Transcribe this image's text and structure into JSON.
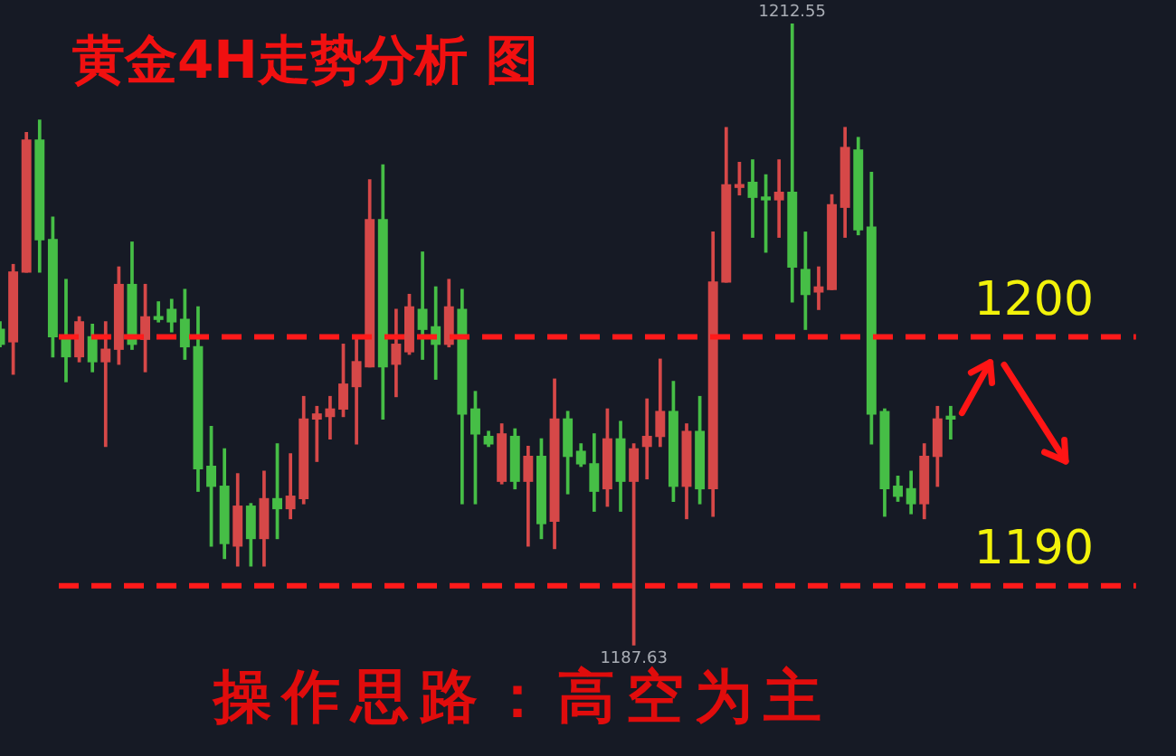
{
  "chart_data": {
    "type": "candlestick",
    "title": "黄金4H走势分析 图",
    "categories": [
      null,
      null,
      null,
      null,
      null,
      null,
      null,
      null,
      null,
      null,
      null,
      null,
      null,
      null,
      null,
      null,
      null,
      null,
      null,
      null,
      null,
      null,
      null,
      null,
      null,
      null,
      null,
      null,
      null,
      null,
      null,
      null,
      null,
      null,
      null,
      null,
      null,
      null,
      null,
      null,
      null,
      null,
      null,
      null,
      null,
      null,
      null,
      null,
      null,
      null,
      null,
      null,
      null,
      null,
      null,
      null,
      null,
      null,
      null,
      null,
      null,
      null,
      null,
      null,
      null,
      null,
      null,
      null,
      null,
      null,
      null,
      null,
      null
    ],
    "ohlc": [
      [
        1200.3,
        1200.6,
        1199.6,
        1199.7
      ],
      [
        1199.8,
        1202.9,
        1198.5,
        1202.6
      ],
      [
        1202.6,
        1208.2,
        1202.6,
        1207.9
      ],
      [
        1207.9,
        1208.7,
        1202.6,
        1203.9
      ],
      [
        1203.9,
        1204.8,
        1199.2,
        1200.0
      ],
      [
        1200.0,
        1202.3,
        1198.2,
        1199.2
      ],
      [
        1199.2,
        1200.8,
        1199.0,
        1200.6
      ],
      [
        1200.0,
        1200.5,
        1198.6,
        1199.0
      ],
      [
        1199.0,
        1200.6,
        1195.6,
        1199.5
      ],
      [
        1199.5,
        1202.8,
        1198.9,
        1202.1
      ],
      [
        1202.1,
        1203.8,
        1199.5,
        1199.7
      ],
      [
        1199.9,
        1202.1,
        1198.6,
        1200.8
      ],
      [
        1200.8,
        1201.4,
        1200.6,
        1200.7
      ],
      [
        1201.1,
        1201.5,
        1200.2,
        1200.6
      ],
      [
        1200.7,
        1201.9,
        1199.1,
        1199.6
      ],
      [
        1199.6,
        1201.2,
        1193.8,
        1194.7
      ],
      [
        1194.8,
        1196.4,
        1191.6,
        1194.0
      ],
      [
        1194.0,
        1195.5,
        1191.1,
        1191.7
      ],
      [
        1191.6,
        1194.5,
        1190.8,
        1193.2
      ],
      [
        1193.2,
        1193.3,
        1190.8,
        1191.9
      ],
      [
        1191.9,
        1194.6,
        1190.8,
        1193.5
      ],
      [
        1193.5,
        1195.7,
        1191.9,
        1193.1
      ],
      [
        1193.1,
        1195.3,
        1192.7,
        1193.6
      ],
      [
        1193.5,
        1197.6,
        1193.3,
        1196.7
      ],
      [
        1196.7,
        1197.2,
        1195.0,
        1196.9
      ],
      [
        1196.8,
        1197.6,
        1195.9,
        1197.1
      ],
      [
        1197.1,
        1199.7,
        1196.8,
        1198.1
      ],
      [
        1198.0,
        1200.0,
        1195.7,
        1199.0
      ],
      [
        1198.8,
        1206.3,
        1198.8,
        1204.7
      ],
      [
        1204.7,
        1206.9,
        1196.7,
        1198.8
      ],
      [
        1198.9,
        1201.1,
        1197.6,
        1199.7
      ],
      [
        1199.4,
        1201.7,
        1199.3,
        1201.2
      ],
      [
        1201.1,
        1203.4,
        1199.1,
        1200.3
      ],
      [
        1200.4,
        1202.0,
        1198.3,
        1199.7
      ],
      [
        1199.7,
        1202.3,
        1199.6,
        1201.2
      ],
      [
        1201.1,
        1201.9,
        1193.3,
        1196.9
      ],
      [
        1197.1,
        1197.8,
        1193.3,
        1196.1
      ],
      [
        1196.0,
        1196.2,
        1195.6,
        1195.7
      ],
      [
        1194.2,
        1196.5,
        1194.1,
        1196.1
      ],
      [
        1196.0,
        1196.3,
        1193.9,
        1194.2
      ],
      [
        1194.2,
        1195.6,
        1191.6,
        1195.2
      ],
      [
        1195.2,
        1195.9,
        1191.9,
        1192.5
      ],
      [
        1192.6,
        1198.3,
        1191.5,
        1196.7
      ],
      [
        1196.7,
        1197.0,
        1193.7,
        1195.2
      ],
      [
        1195.4,
        1195.7,
        1194.8,
        1194.9
      ],
      [
        1194.9,
        1196.1,
        1193.0,
        1193.8
      ],
      [
        1193.9,
        1197.1,
        1193.2,
        1195.9
      ],
      [
        1195.9,
        1196.6,
        1193.0,
        1194.2
      ],
      [
        1194.2,
        1195.7,
        1187.63,
        1195.5
      ],
      [
        1195.6,
        1197.5,
        1194.3,
        1196.0
      ],
      [
        1196.0,
        1199.1,
        1195.6,
        1197.0
      ],
      [
        1197.0,
        1198.2,
        1193.4,
        1194.0
      ],
      [
        1194.0,
        1196.5,
        1192.7,
        1196.2
      ],
      [
        1196.2,
        1197.6,
        1193.3,
        1193.9
      ],
      [
        1193.9,
        1204.2,
        1192.8,
        1202.2
      ],
      [
        1202.2,
        1208.4,
        1202.2,
        1206.1
      ],
      [
        1206.0,
        1207.0,
        1205.7,
        1206.1
      ],
      [
        1206.2,
        1207.1,
        1204.0,
        1205.6
      ],
      [
        1205.6,
        1206.5,
        1203.4,
        1205.5
      ],
      [
        1205.5,
        1207.1,
        1204.0,
        1205.8
      ],
      [
        1205.8,
        1212.55,
        1201.4,
        1202.8
      ],
      [
        1202.7,
        1204.2,
        1200.3,
        1201.7
      ],
      [
        1201.8,
        1202.8,
        1201.1,
        1202.0
      ],
      [
        1201.9,
        1205.7,
        1201.9,
        1205.3
      ],
      [
        1205.2,
        1208.4,
        1204.0,
        1207.6
      ],
      [
        1207.5,
        1208.0,
        1204.1,
        1204.3
      ],
      [
        1204.4,
        1206.6,
        1195.7,
        1196.9
      ],
      [
        1197.0,
        1197.1,
        1192.8,
        1193.9
      ],
      [
        1194.0,
        1194.4,
        1193.4,
        1193.6
      ],
      [
        1193.9,
        1194.6,
        1192.9,
        1193.3
      ],
      [
        1193.3,
        1195.7,
        1192.7,
        1195.2
      ],
      [
        1195.2,
        1197.2,
        1194.0,
        1196.7
      ],
      [
        1196.8,
        1197.2,
        1195.9,
        1196.7
      ]
    ],
    "colors": [
      "#46be46",
      "#d64848",
      "#d64848",
      "#46be46",
      "#46be46",
      "#46be46",
      "#d64848",
      "#46be46",
      "#d64848",
      "#d64848",
      "#46be46",
      "#d64848",
      "#46be46",
      "#46be46",
      "#46be46",
      "#46be46",
      "#46be46",
      "#46be46",
      "#d64848",
      "#46be46",
      "#d64848",
      "#46be46",
      "#d64848",
      "#d64848",
      "#d64848",
      "#d64848",
      "#d64848",
      "#d64848",
      "#d64848",
      "#46be46",
      "#d64848",
      "#d64848",
      "#46be46",
      "#46be46",
      "#d64848",
      "#46be46",
      "#46be46",
      "#46be46",
      "#d64848",
      "#46be46",
      "#d64848",
      "#46be46",
      "#d64848",
      "#46be46",
      "#46be46",
      "#46be46",
      "#d64848",
      "#46be46",
      "#d64848",
      "#d64848",
      "#d64848",
      "#46be46",
      "#d64848",
      "#46be46",
      "#d64848",
      "#d64848",
      "#d64848",
      "#46be46",
      "#46be46",
      "#d64848",
      "#46be46",
      "#46be46",
      "#d64848",
      "#d64848",
      "#d64848",
      "#46be46",
      "#46be46",
      "#46be46",
      "#46be46",
      "#46be46",
      "#d64848",
      "#d64848",
      "#46be46"
    ],
    "ref_lines": [
      {
        "axis": "y",
        "value": 1200,
        "label": "1200",
        "color": "#ff1a1a",
        "line_style": "dashed"
      },
      {
        "axis": "y",
        "value": 1190,
        "label": "1190",
        "color": "#ff1a1a",
        "line_style": "dashed"
      }
    ],
    "annotations": [
      "操作思路：高空为主",
      {
        "text": "1212.55",
        "y": 1212.55
      },
      {
        "text": "1187.63",
        "y": 1187.63
      }
    ],
    "tick_labels": false
  }
}
